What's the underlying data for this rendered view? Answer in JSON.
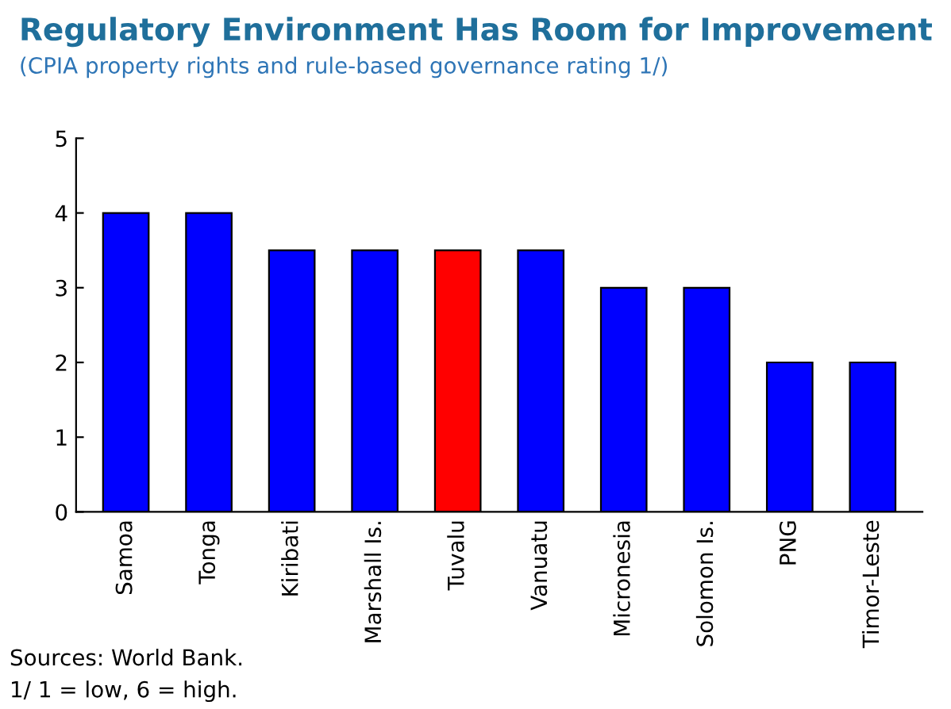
{
  "chart_data": {
    "type": "bar",
    "title": "Regulatory Environment Has Room for Improvement",
    "subtitle": "(CPIA property rights and rule-based governance rating 1/)",
    "categories": [
      "Samoa",
      "Tonga",
      "Kiribati",
      "Marshall Is.",
      "Tuvalu",
      "Vanuatu",
      "Micronesia",
      "Solomon Is.",
      "PNG",
      "Timor-Leste"
    ],
    "values": [
      4,
      4,
      3.5,
      3.5,
      3.5,
      3.5,
      3,
      3,
      2,
      2
    ],
    "colors": [
      "#0000ff",
      "#0000ff",
      "#0000ff",
      "#0000ff",
      "#ff0000",
      "#0000ff",
      "#0000ff",
      "#0000ff",
      "#0000ff",
      "#0000ff"
    ],
    "ylim": [
      0,
      5
    ],
    "yticks": [
      0,
      1,
      2,
      3,
      4,
      5
    ],
    "grid": false,
    "legend": false,
    "annotations": [
      "Sources: World Bank.",
      "1/ 1 = low, 6 = high."
    ]
  }
}
